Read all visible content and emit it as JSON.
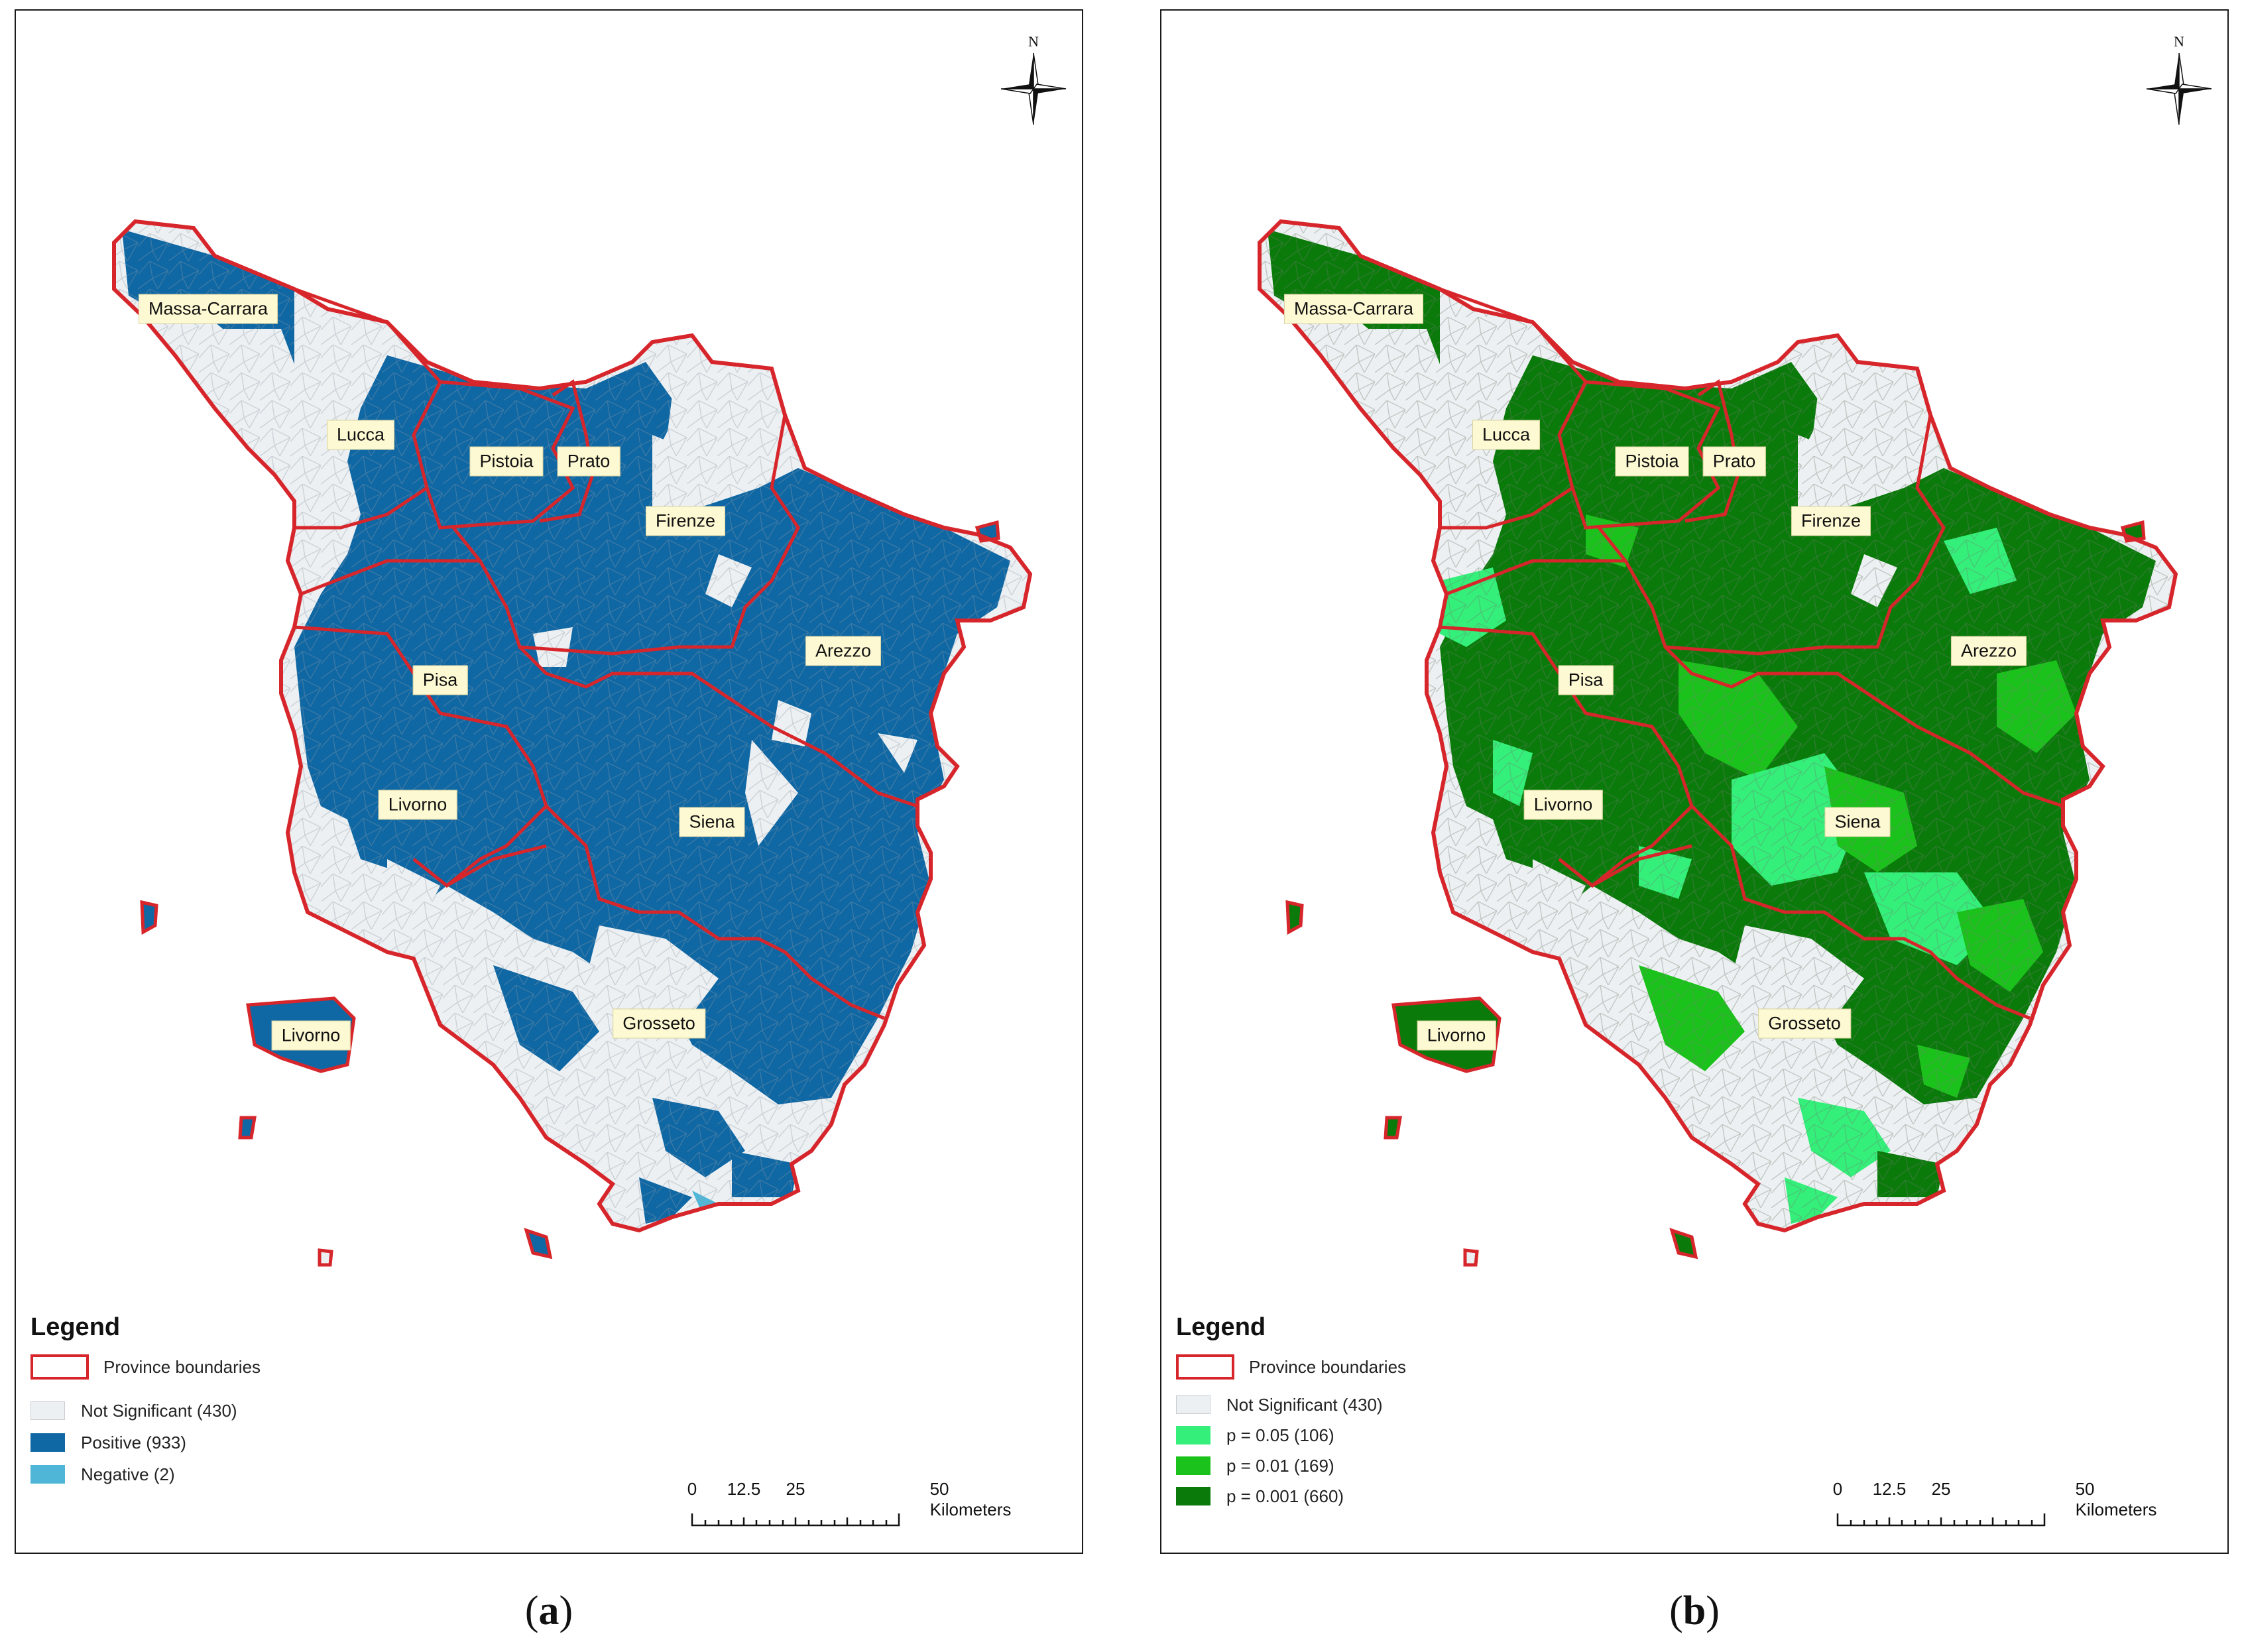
{
  "panels": [
    {
      "id": "a",
      "caption_letter": "a",
      "legend": {
        "title": "Legend",
        "items": [
          {
            "label": "Province boundaries",
            "kind": "boundary",
            "color": "#d7262b"
          },
          {
            "label": "Not Significant (430)",
            "kind": "fill",
            "color": "#edf0f2"
          },
          {
            "label": "Positive (933)",
            "kind": "fill",
            "color": "#0f67a3"
          },
          {
            "label": "Negative (2)",
            "kind": "fill",
            "color": "#4fb6d8"
          }
        ]
      }
    },
    {
      "id": "b",
      "caption_letter": "b",
      "legend": {
        "title": "Legend",
        "items": [
          {
            "label": "Province boundaries",
            "kind": "boundary",
            "color": "#d7262b"
          },
          {
            "label": "Not Significant (430)",
            "kind": "fill",
            "color": "#edf0f2"
          },
          {
            "label": "p = 0.05 (106)",
            "kind": "fill",
            "color": "#34f07a"
          },
          {
            "label": "p = 0.01 (169)",
            "kind": "fill",
            "color": "#1cc21c"
          },
          {
            "label": "p = 0.001 (660)",
            "kind": "fill",
            "color": "#0a7a0a"
          }
        ]
      }
    }
  ],
  "province_labels": [
    "Massa-Carrara",
    "Lucca",
    "Pistoia",
    "Prato",
    "Firenze",
    "Arezzo",
    "Pisa",
    "Livorno",
    "Siena",
    "Grosseto",
    "Livorno"
  ],
  "north_letter": "N",
  "scale": {
    "ticks": [
      "0",
      "12.5",
      "25",
      "50 Kilometers"
    ]
  },
  "colors": {
    "boundary": "#d7262b",
    "not_significant": "#edf0f2",
    "positive": "#0f67a3",
    "negative": "#4fb6d8",
    "p005": "#34f07a",
    "p001": "#1cc21c",
    "p0001": "#0a7a0a"
  }
}
